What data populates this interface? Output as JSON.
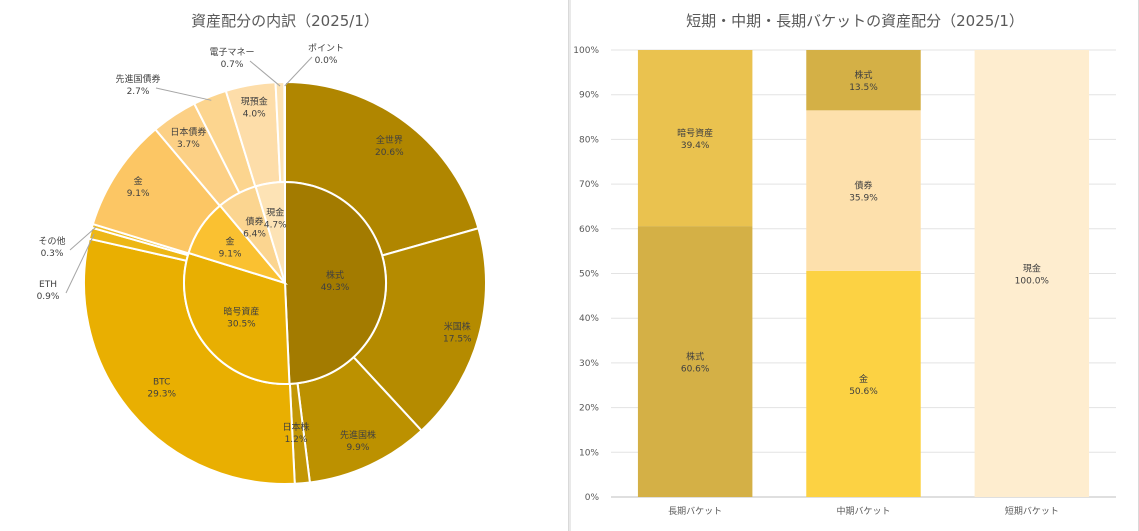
{
  "chart_data": [
    {
      "type": "pie",
      "subtype": "doughnut-nested",
      "title": "資産配分の内訳（2025/1）",
      "inner_ring": [
        {
          "label": "株式",
          "value": 49.3,
          "display": "49.3%",
          "color": "#A37B00"
        },
        {
          "label": "暗号資産",
          "value": 30.5,
          "display": "30.5%",
          "color": "#E8AF02"
        },
        {
          "label": "金",
          "value": 9.1,
          "display": "9.1%",
          "color": "#FAC131"
        },
        {
          "label": "債券",
          "value": 6.4,
          "display": "6.4%",
          "color": "#FBD590"
        },
        {
          "label": "現金",
          "value": 4.7,
          "display": "4.7%",
          "color": "#FDE3B5"
        }
      ],
      "outer_ring": [
        {
          "label": "全世界",
          "value": 20.6,
          "display": "20.6%",
          "color": "#B08600"
        },
        {
          "label": "米国株",
          "value": 17.5,
          "display": "17.5%",
          "color": "#B58B00"
        },
        {
          "label": "先進国株",
          "value": 9.9,
          "display": "9.9%",
          "color": "#BC9100"
        },
        {
          "label": "日本株",
          "value": 1.2,
          "display": "1.2%",
          "color": "#C39705"
        },
        {
          "label": "BTC",
          "value": 29.3,
          "display": "29.3%",
          "color": "#E9AF01"
        },
        {
          "label": "ETH",
          "value": 0.9,
          "display": "0.9%",
          "color": "#EDB716"
        },
        {
          "label": "その他",
          "value": 0.3,
          "display": "0.3%",
          "color": "#F0BD25"
        },
        {
          "label": "金",
          "value": 9.1,
          "display": "9.1%",
          "color": "#FCC664"
        },
        {
          "label": "日本債券",
          "value": 3.7,
          "display": "3.7%",
          "color": "#FCD085"
        },
        {
          "label": "先進国債券",
          "value": 2.7,
          "display": "2.7%",
          "color": "#FCD58F"
        },
        {
          "label": "現預金",
          "value": 4.0,
          "display": "4.0%",
          "color": "#FDDDA9"
        },
        {
          "label": "電子マネー",
          "value": 0.7,
          "display": "0.7%",
          "color": "#FDE3B5"
        },
        {
          "label": "ポイント",
          "value": 0.05,
          "display": "0.0%",
          "color": "#FEEACB"
        }
      ]
    },
    {
      "type": "bar",
      "subtype": "stacked-100",
      "title": "短期・中期・長期バケットの資産配分（2025/1）",
      "categories": [
        "長期バケット",
        "中期バケット",
        "短期バケット"
      ],
      "ylim": [
        0,
        100
      ],
      "yticks": [
        "0%",
        "10%",
        "20%",
        "30%",
        "40%",
        "50%",
        "60%",
        "70%",
        "80%",
        "90%",
        "100%"
      ],
      "grid": true,
      "stacks": [
        [
          {
            "label": "株式",
            "value": 60.6,
            "display": "60.6%",
            "color": "#D4B046"
          },
          {
            "label": "暗号資産",
            "value": 39.4,
            "display": "39.4%",
            "color": "#EAC24F"
          }
        ],
        [
          {
            "label": "金",
            "value": 50.6,
            "display": "50.6%",
            "color": "#FCD243"
          },
          {
            "label": "債券",
            "value": 35.9,
            "display": "35.9%",
            "color": "#FDE0AC"
          },
          {
            "label": "株式",
            "value": 13.5,
            "display": "13.5%",
            "color": "#D4B046"
          }
        ],
        [
          {
            "label": "現金",
            "value": 100.0,
            "display": "100.0%",
            "color": "#FEEDCF"
          }
        ]
      ]
    }
  ]
}
